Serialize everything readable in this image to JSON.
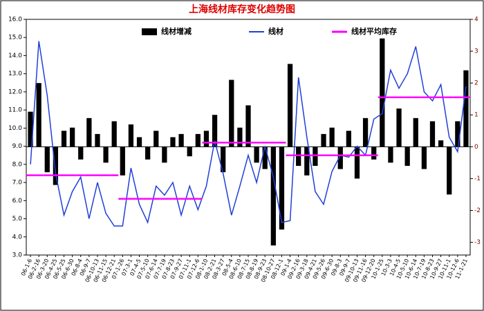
{
  "chart_data": {
    "type": "combo",
    "title": "上海线材库存变化趋势图",
    "categories": [
      "06-1-6",
      "06-2-16",
      "06-3-20",
      "06-4-25",
      "06-5-25",
      "06-6-30",
      "06-8-4",
      "06-9-7",
      "06-10-13",
      "06-11-15",
      "06-12-21",
      "07-1-26",
      "07-3-1",
      "07-4-5",
      "07-5-10",
      "07-6-14",
      "07-7-19",
      "07-8-23",
      "07-9-27",
      "07-11-1",
      "07-12-6",
      "08-1-10",
      "08-2-21",
      "08-3-27",
      "08-5-4",
      "08-6-10",
      "08-7-15",
      "08-8-19",
      "08-9-23",
      "08-10-27",
      "08-12-1",
      "09-1-4",
      "09-2-16",
      "09-3-18",
      "09-4-21",
      "09-5-26",
      "09-6-30",
      "09-8-3",
      "09-9-7",
      "09-10-13",
      "09-11-16",
      "09-12-20",
      "10-1-25",
      "10-3-3",
      "10-4-5",
      "10-5-10",
      "10-6-14",
      "10-7-19",
      "10-8-23",
      "10-9-27",
      "10-11-1",
      "10-12-6",
      "11-1-21"
    ],
    "series": [
      {
        "name": "线材增减",
        "type": "bar",
        "axis": "y2",
        "color": "#000000",
        "values": [
          1.1,
          2.0,
          -0.8,
          -1.2,
          0.5,
          0.6,
          -0.4,
          0.9,
          0.4,
          -0.5,
          0.8,
          -0.9,
          0.7,
          0.3,
          -0.4,
          0.5,
          -0.5,
          0.3,
          0.4,
          -0.3,
          0.4,
          0.5,
          1.0,
          -0.8,
          2.1,
          0.6,
          1.3,
          -0.5,
          -0.7,
          -3.1,
          -2.6,
          2.6,
          -0.6,
          -0.9,
          -0.6,
          0.4,
          0.6,
          -0.7,
          0.5,
          -1.0,
          0.9,
          -0.4,
          3.4,
          -0.5,
          1.2,
          -0.6,
          0.9,
          -0.7,
          0.8,
          0.2,
          -1.5,
          0.8,
          2.4
        ]
      },
      {
        "name": "线材",
        "type": "line",
        "color": "#1f3fd8",
        "values": [
          8.0,
          14.8,
          11.8,
          7.5,
          5.2,
          6.5,
          7.3,
          5.0,
          7.0,
          5.3,
          4.6,
          4.6,
          7.8,
          5.8,
          4.8,
          6.8,
          6.3,
          7.0,
          5.2,
          6.8,
          5.5,
          6.8,
          9.3,
          7.5,
          5.2,
          6.8,
          8.5,
          7.0,
          9.0,
          7.3,
          4.8,
          4.9,
          12.8,
          9.5,
          6.5,
          5.8,
          7.6,
          8.5,
          8.4,
          9.0,
          8.5,
          10.5,
          10.8,
          13.2,
          12.2,
          13.0,
          14.5,
          12.0,
          11.5,
          12.4,
          9.5,
          8.7,
          12.3
        ]
      },
      {
        "name": "线材平均库存",
        "type": "step",
        "color": "#ff00ff",
        "values": [
          7.4,
          7.4,
          7.4,
          7.4,
          7.4,
          7.4,
          7.4,
          7.4,
          7.4,
          7.4,
          7.4,
          6.1,
          6.1,
          6.1,
          6.1,
          6.1,
          6.1,
          6.1,
          6.1,
          6.1,
          6.1,
          9.2,
          9.2,
          9.2,
          9.2,
          9.2,
          9.2,
          9.2,
          9.2,
          9.2,
          9.2,
          8.5,
          8.5,
          8.5,
          8.5,
          8.5,
          8.5,
          8.5,
          8.5,
          8.5,
          8.5,
          8.5,
          11.7,
          11.7,
          11.7,
          11.7,
          11.7,
          11.7,
          11.7,
          11.7,
          11.7,
          11.7,
          11.7
        ]
      }
    ],
    "ylim": [
      3,
      16
    ],
    "yticks": [
      {
        "value": 3,
        "label": "3.0"
      },
      {
        "value": 4,
        "label": "4.0"
      },
      {
        "value": 5,
        "label": "5.0"
      },
      {
        "value": 6,
        "label": "6.0"
      },
      {
        "value": 7,
        "label": "7.0"
      },
      {
        "value": 8,
        "label": "8.0"
      },
      {
        "value": 9,
        "label": "9.0"
      },
      {
        "value": 10,
        "label": "10.0"
      },
      {
        "value": 11,
        "label": "11.0"
      },
      {
        "value": 12,
        "label": "12.0"
      },
      {
        "value": 13,
        "label": "13.0"
      },
      {
        "value": 14,
        "label": "14.0"
      },
      {
        "value": 15,
        "label": "15.0"
      },
      {
        "value": 16,
        "label": "16.0"
      }
    ],
    "y2lim": [
      -3.4,
      4
    ],
    "y2ticks": [
      -3,
      -2,
      -1,
      0,
      1,
      2,
      3,
      4
    ]
  }
}
